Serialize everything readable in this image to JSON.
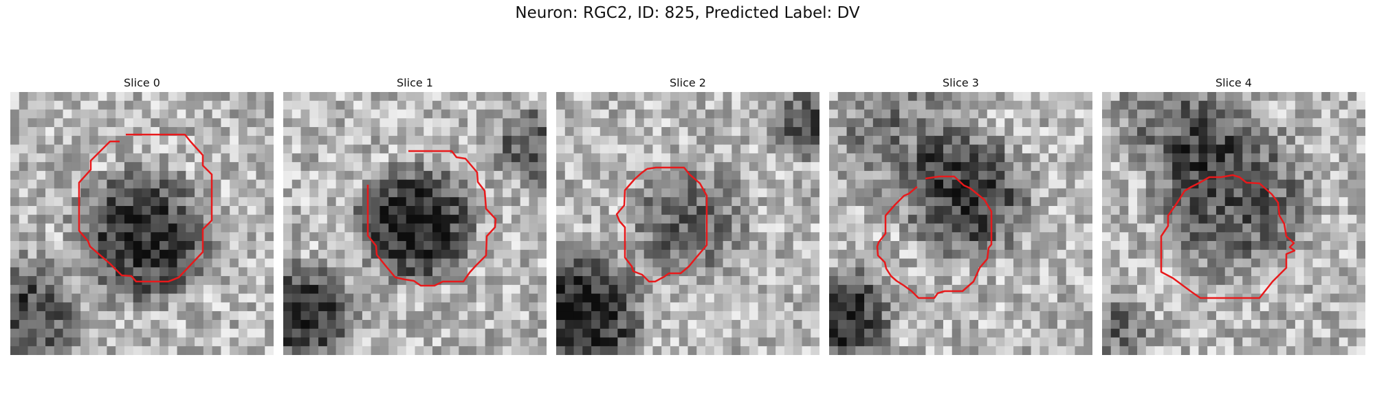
{
  "figure": {
    "title": "Neuron: RGC2, ID: 825, Predicted Label: DV"
  },
  "panels": [
    {
      "title": "Slice 0"
    },
    {
      "title": "Slice 1"
    },
    {
      "title": "Slice 2"
    },
    {
      "title": "Slice 3"
    },
    {
      "title": "Slice 4"
    }
  ],
  "colors": {
    "contour": "#e8191b",
    "image_colormap": "grayscale"
  }
}
